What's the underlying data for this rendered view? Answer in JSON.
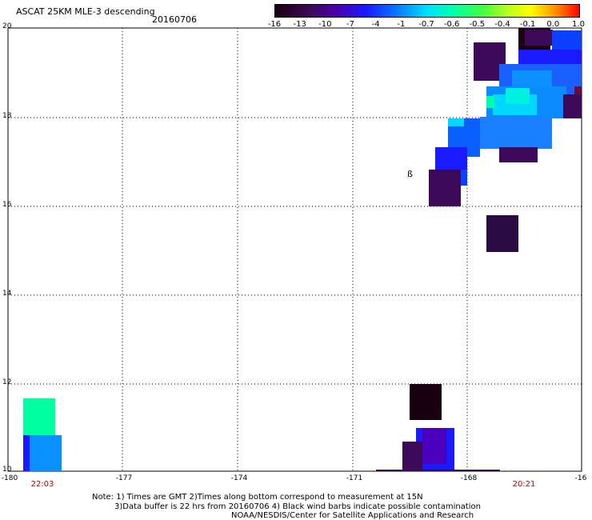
{
  "header": {
    "title": "ASCAT 25KM MLE-3 descending",
    "date": "20160706"
  },
  "colorbar": {
    "labels": [
      "-16",
      "-13",
      "-10",
      "-7",
      "-4",
      "-1",
      "-0.7",
      "-0.6",
      "-0.5",
      "-0.4",
      "-0.1",
      "0.0",
      "1.0"
    ],
    "colors": [
      "#1a0010",
      "#3d0a5a",
      "#4b00a8",
      "#1a1aff",
      "#0a78ff",
      "#00d8ff",
      "#00ffb0",
      "#40ff40",
      "#b0ff20",
      "#ffff00",
      "#ffb000",
      "#ff6000",
      "#ff0000"
    ]
  },
  "map": {
    "lat_labels": [
      "20",
      "18",
      "16",
      "14",
      "12",
      "10"
    ],
    "lon_labels": [
      "-180",
      "-177",
      "-174",
      "-171",
      "-168",
      "-16"
    ],
    "lat_range": [
      10,
      20
    ],
    "lon_range": [
      -180,
      -165
    ],
    "grid": "dotted"
  },
  "times": {
    "left": "22:03",
    "right": "20:21"
  },
  "notes": {
    "line1": "Note: 1) Times are GMT 2)Times along bottom correspond to measurement at 15N",
    "line2": "3)Data buffer is 22 hrs from 20160706 4) Black wind barbs indicate possible contamination",
    "line3": "NOAA/NESDIS/Center for Satellite Applications and Research"
  },
  "barb_mark": "ß"
}
